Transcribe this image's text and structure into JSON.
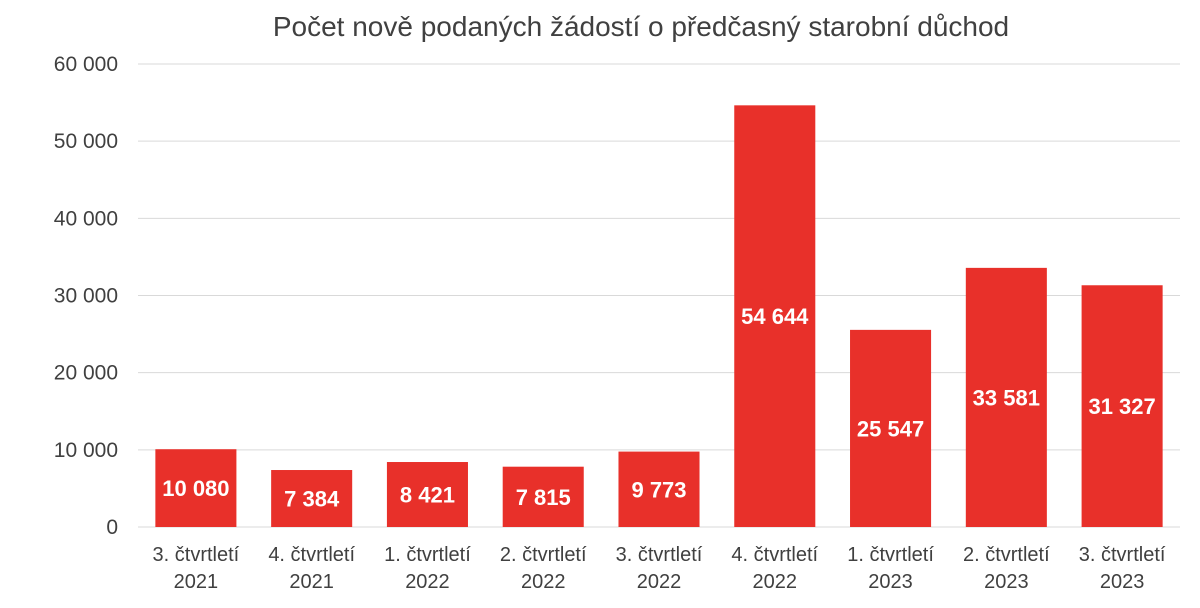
{
  "chart_data": {
    "type": "bar",
    "title": "Počet nově podaných žádostí o předčasný starobní důchod",
    "xlabel": "",
    "ylabel": "",
    "categories": [
      [
        "3. čtvrtletí",
        "2021"
      ],
      [
        "4. čtvrtletí",
        "2021"
      ],
      [
        "1. čtvrtletí",
        "2022"
      ],
      [
        "2. čtvrtletí",
        "2022"
      ],
      [
        "3. čtvrtletí",
        "2022"
      ],
      [
        "4. čtvrtletí",
        "2022"
      ],
      [
        "1. čtvrtletí",
        "2023"
      ],
      [
        "2. čtvrtletí",
        "2023"
      ],
      [
        "3. čtvrtletí",
        "2023"
      ]
    ],
    "values": [
      10080,
      7384,
      8421,
      7815,
      9773,
      54644,
      25547,
      33581,
      31327
    ],
    "data_labels": [
      "10 080",
      "7 384",
      "8 421",
      "7 815",
      "9 773",
      "54 644",
      "25 547",
      "33 581",
      "31 327"
    ],
    "ylim": [
      0,
      60000
    ],
    "yticks": [
      0,
      10000,
      20000,
      30000,
      40000,
      50000,
      60000
    ],
    "ytick_labels": [
      "0",
      "10 000",
      "20 000",
      "30 000",
      "40 000",
      "50 000",
      "60 000"
    ],
    "grid": true,
    "legend": false,
    "bar_color": "#e8302a"
  }
}
